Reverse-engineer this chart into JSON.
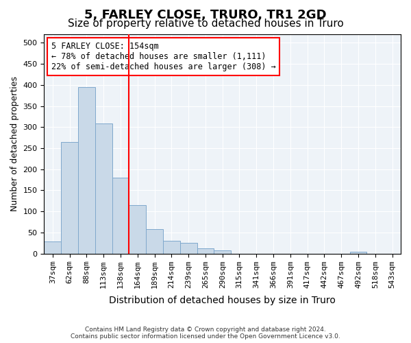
{
  "title": "5, FARLEY CLOSE, TRURO, TR1 2GD",
  "subtitle": "Size of property relative to detached houses in Truro",
  "xlabel": "Distribution of detached houses by size in Truro",
  "ylabel": "Number of detached properties",
  "footnote": "Contains HM Land Registry data © Crown copyright and database right 2024.\nContains public sector information licensed under the Open Government Licence v3.0.",
  "bin_labels": [
    "37sqm",
    "62sqm",
    "88sqm",
    "113sqm",
    "138sqm",
    "164sqm",
    "189sqm",
    "214sqm",
    "239sqm",
    "265sqm",
    "290sqm",
    "315sqm",
    "341sqm",
    "366sqm",
    "391sqm",
    "417sqm",
    "442sqm",
    "467sqm",
    "492sqm",
    "518sqm",
    "543sqm"
  ],
  "bar_values": [
    28,
    265,
    395,
    308,
    180,
    115,
    58,
    30,
    25,
    13,
    8,
    0,
    0,
    0,
    0,
    0,
    0,
    0,
    4,
    0,
    0
  ],
  "bar_color": "#c9d9e8",
  "bar_edge_color": "#7fa8cc",
  "red_line_x": 4.5,
  "red_line_label": "5 FARLEY CLOSE: 154sqm",
  "annotation_line1": "← 78% of detached houses are smaller (1,111)",
  "annotation_line2": "22% of semi-detached houses are larger (308) →",
  "annotation_box_color": "white",
  "annotation_box_edge_color": "red",
  "ylim": [
    0,
    520
  ],
  "yticks": [
    0,
    50,
    100,
    150,
    200,
    250,
    300,
    350,
    400,
    450,
    500
  ],
  "background_color": "#eef3f8",
  "title_fontsize": 13,
  "subtitle_fontsize": 11,
  "tick_fontsize": 8
}
